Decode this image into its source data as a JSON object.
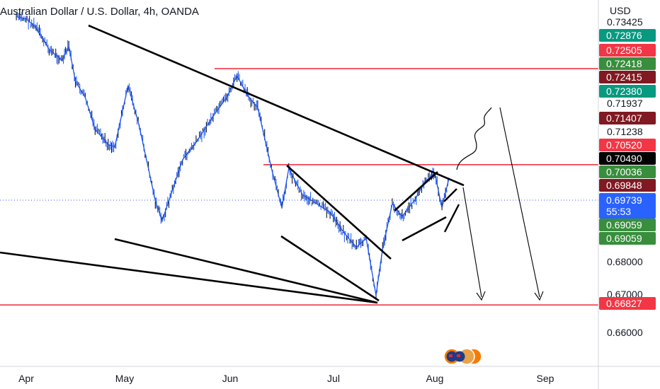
{
  "header": {
    "title": "Australian Dollar / U.S. Dollar, 4h, OANDA",
    "currency": "USD"
  },
  "price_axis": {
    "ticks": [
      "0.73425",
      "0.71937",
      "0.71238",
      "0.68000",
      "0.67000",
      "0.66000"
    ],
    "tags": [
      {
        "label": "0.72876",
        "color": "#089981"
      },
      {
        "label": "0.72505",
        "color": "#f23645"
      },
      {
        "label": "0.72418",
        "color": "#388e3c"
      },
      {
        "label": "0.72415",
        "color": "#801922"
      },
      {
        "label": "0.72380",
        "color": "#089981"
      },
      {
        "label": "0.71407",
        "color": "#801922"
      },
      {
        "label": "0.70520",
        "color": "#f23645"
      },
      {
        "label": "0.70490",
        "color": "#000000"
      },
      {
        "label": "0.70036",
        "color": "#388e3c"
      },
      {
        "label": "0.69848",
        "color": "#801922"
      },
      {
        "label": "0.69059",
        "color": "#388e3c"
      },
      {
        "label": "0.69059",
        "color": "#388e3c"
      },
      {
        "label": "0.66827",
        "color": "#f23645"
      }
    ],
    "current_price": {
      "price": "0.69739",
      "countdown": "55:53",
      "color": "#2962ff"
    }
  },
  "time_axis": {
    "labels": [
      "Apr",
      "May",
      "Jun",
      "Jul",
      "Aug",
      "Sep"
    ]
  },
  "chart_data": {
    "type": "line",
    "title": "Australian Dollar / U.S. Dollar, 4h, OANDA",
    "xlabel": "",
    "ylabel": "USD",
    "x_ticks": [
      "Apr",
      "May",
      "Jun",
      "Jul",
      "Aug",
      "Sep"
    ],
    "ylim": [
      0.6555,
      0.7365
    ],
    "grid": false,
    "series": [
      {
        "values": [
          {
            "x": "Mar 26",
            "y": 0.7343
          },
          {
            "x": "Apr 1",
            "y": 0.7338
          },
          {
            "x": "Apr 4",
            "y": 0.7318
          },
          {
            "x": "Apr 8",
            "y": 0.7268
          },
          {
            "x": "Apr 12",
            "y": 0.7243
          },
          {
            "x": "Apr 14",
            "y": 0.7275
          },
          {
            "x": "Apr 16",
            "y": 0.7195
          },
          {
            "x": "Apr 19",
            "y": 0.7158
          },
          {
            "x": "Apr 22",
            "y": 0.7085
          },
          {
            "x": "Apr 26",
            "y": 0.705
          },
          {
            "x": "Apr 28",
            "y": 0.7045
          },
          {
            "x": "May 2",
            "y": 0.7185
          },
          {
            "x": "May 5",
            "y": 0.7102
          },
          {
            "x": "May 8",
            "y": 0.6995
          },
          {
            "x": "May 10",
            "y": 0.6922
          },
          {
            "x": "May 12",
            "y": 0.6875
          },
          {
            "x": "May 15",
            "y": 0.6945
          },
          {
            "x": "May 18",
            "y": 0.7015
          },
          {
            "x": "May 22",
            "y": 0.7055
          },
          {
            "x": "May 27",
            "y": 0.7115
          },
          {
            "x": "May 31",
            "y": 0.7158
          },
          {
            "x": "Jun 3",
            "y": 0.7208
          },
          {
            "x": "Jun 6",
            "y": 0.7163
          },
          {
            "x": "Jun 9",
            "y": 0.7135
          },
          {
            "x": "Jun 13",
            "y": 0.6995
          },
          {
            "x": "Jun 16",
            "y": 0.6905
          },
          {
            "x": "Jun 18",
            "y": 0.6995
          },
          {
            "x": "Jun 22",
            "y": 0.6935
          },
          {
            "x": "Jun 26",
            "y": 0.6915
          },
          {
            "x": "Jun 30",
            "y": 0.6895
          },
          {
            "x": "Jul 4",
            "y": 0.685
          },
          {
            "x": "Jul 8",
            "y": 0.6815
          },
          {
            "x": "Jul 11",
            "y": 0.6835
          },
          {
            "x": "Jul 14",
            "y": 0.6705
          },
          {
            "x": "Jul 16",
            "y": 0.681
          },
          {
            "x": "Jul 19",
            "y": 0.6915
          },
          {
            "x": "Jul 22",
            "y": 0.6885
          },
          {
            "x": "Jul 26",
            "y": 0.6925
          },
          {
            "x": "Jul 29",
            "y": 0.6965
          },
          {
            "x": "Aug 1",
            "y": 0.6985
          },
          {
            "x": "Aug 3",
            "y": 0.6905
          },
          {
            "x": "Aug 5",
            "y": 0.6974
          }
        ]
      }
    ]
  }
}
